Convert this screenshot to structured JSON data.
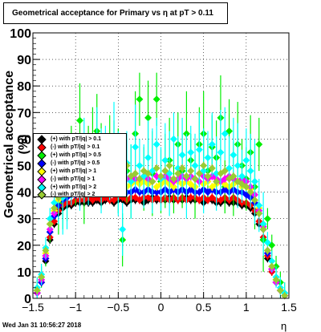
{
  "title": "Geometrical acceptance for Primary vs    η at pT > 0.11",
  "footer_timestamp": "Wed Jan 31 10:56:27 2018",
  "chart_data": {
    "type": "scatter",
    "title": "Geometrical acceptance for Primary vs    η at pT > 0.11",
    "xlabel": "η",
    "ylabel": "Geometrical acceptance (%)",
    "xlim": [
      -1.5,
      1.5
    ],
    "ylim": [
      0,
      100
    ],
    "x_ticks": [
      "−1.5",
      "−1",
      "−0.5",
      "0",
      "0.5",
      "1",
      "1.5"
    ],
    "y_ticks": [
      "0",
      "10",
      "20",
      "30",
      "40",
      "50",
      "60",
      "70",
      "80",
      "90",
      "100"
    ],
    "grid": true,
    "legend_position": "middle-left",
    "x": [
      -1.45,
      -1.4,
      -1.35,
      -1.3,
      -1.25,
      -1.2,
      -1.15,
      -1.1,
      -1.05,
      -1.0,
      -0.95,
      -0.9,
      -0.85,
      -0.8,
      -0.75,
      -0.7,
      -0.65,
      -0.6,
      -0.55,
      -0.5,
      -0.45,
      -0.4,
      -0.35,
      -0.3,
      -0.25,
      -0.2,
      -0.15,
      -0.1,
      -0.05,
      0.0,
      0.05,
      0.1,
      0.15,
      0.2,
      0.25,
      0.3,
      0.35,
      0.4,
      0.45,
      0.5,
      0.55,
      0.6,
      0.65,
      0.7,
      0.75,
      0.8,
      0.85,
      0.9,
      0.95,
      1.0,
      1.05,
      1.1,
      1.15,
      1.2,
      1.25,
      1.3,
      1.35,
      1.4,
      1.45
    ],
    "series": [
      {
        "name": "(+) with pT/|q| > 0.1",
        "color": "#000000",
        "values": [
          2,
          6,
          14,
          22,
          28,
          32,
          34,
          35,
          35,
          36,
          36,
          36,
          36,
          36,
          37,
          36,
          37,
          37,
          36,
          37,
          37,
          36,
          37,
          37,
          37,
          36,
          37,
          38,
          37,
          37,
          37,
          38,
          37,
          37,
          37,
          38,
          37,
          37,
          37,
          36,
          37,
          37,
          36,
          36,
          37,
          36,
          36,
          36,
          35,
          35,
          34,
          32,
          28,
          22,
          15,
          10,
          6,
          3,
          1
        ]
      },
      {
        "name": "(-) with pT/|q| > 0.1",
        "color": "#ff0000",
        "values": [
          2,
          6,
          15,
          23,
          29,
          33,
          35,
          36,
          36,
          37,
          37,
          37,
          38,
          37,
          38,
          37,
          38,
          37,
          37,
          38,
          38,
          37,
          38,
          38,
          37,
          38,
          38,
          37,
          38,
          37,
          38,
          37,
          38,
          37,
          38,
          37,
          38,
          38,
          37,
          38,
          37,
          38,
          37,
          37,
          38,
          37,
          38,
          37,
          36,
          36,
          35,
          33,
          29,
          23,
          16,
          10,
          6,
          3,
          1
        ]
      },
      {
        "name": "(+) with pT/|q| > 0.5",
        "color": "#00ee00",
        "values": [
          3,
          8,
          16,
          25,
          42,
          36,
          40,
          45,
          55,
          47,
          67,
          44,
          55,
          60,
          63,
          50,
          52,
          57,
          53,
          48,
          22,
          48,
          44,
          62,
          75,
          45,
          68,
          47,
          75,
          44,
          48,
          52,
          42,
          58,
          48,
          62,
          52,
          42,
          58,
          62,
          48,
          57,
          53,
          68,
          42,
          63,
          45,
          58,
          50,
          45,
          55,
          42,
          58,
          22,
          30,
          20,
          12,
          6,
          2
        ]
      },
      {
        "name": "(-) with pT/|q| > 0.5",
        "color": "#0000ff",
        "values": [
          2,
          6,
          15,
          25,
          31,
          35,
          37,
          38,
          39,
          39,
          40,
          40,
          41,
          40,
          40,
          41,
          40,
          40,
          41,
          40,
          41,
          40,
          40,
          41,
          40,
          40,
          41,
          40,
          40,
          40,
          41,
          40,
          41,
          40,
          41,
          40,
          41,
          40,
          40,
          41,
          40,
          41,
          40,
          40,
          41,
          40,
          41,
          40,
          40,
          39,
          38,
          36,
          32,
          26,
          17,
          11,
          6,
          3,
          1
        ]
      },
      {
        "name": "(+) with pT/|q| > 1",
        "color": "#ffff00",
        "values": [
          3,
          7,
          17,
          28,
          33,
          37,
          40,
          41,
          42,
          42,
          43,
          42,
          44,
          43,
          43,
          44,
          42,
          43,
          44,
          43,
          44,
          42,
          43,
          44,
          43,
          44,
          43,
          44,
          42,
          43,
          44,
          43,
          42,
          44,
          43,
          44,
          43,
          42,
          44,
          43,
          44,
          42,
          43,
          44,
          43,
          42,
          43,
          44,
          42,
          42,
          41,
          39,
          34,
          28,
          18,
          12,
          7,
          3,
          1
        ]
      },
      {
        "name": "(-) with pT/|q| > 1",
        "color": "#ff00ff",
        "values": [
          2,
          7,
          16,
          26,
          32,
          38,
          42,
          43,
          43,
          44,
          45,
          44,
          45,
          46,
          45,
          44,
          46,
          45,
          45,
          46,
          44,
          45,
          46,
          45,
          45,
          46,
          45,
          44,
          46,
          45,
          46,
          45,
          44,
          45,
          46,
          45,
          46,
          45,
          44,
          46,
          45,
          46,
          45,
          44,
          45,
          46,
          45,
          44,
          45,
          44,
          42,
          39,
          33,
          27,
          18,
          11,
          6,
          3,
          1
        ]
      },
      {
        "name": "(+) with pT/|q| > 2",
        "color": "#00ffff",
        "values": [
          4,
          9,
          19,
          30,
          36,
          40,
          38,
          42,
          45,
          50,
          47,
          52,
          45,
          50,
          58,
          48,
          55,
          49,
          60,
          47,
          26,
          51,
          44,
          57,
          50,
          46,
          53,
          48,
          58,
          45,
          52,
          47,
          60,
          49,
          54,
          46,
          55,
          50,
          56,
          48,
          53,
          58,
          47,
          55,
          62,
          49,
          54,
          50,
          46,
          52,
          48,
          44,
          35,
          28,
          21,
          14,
          8,
          4,
          2
        ]
      },
      {
        "name": "(-) with pT/|q| > 2",
        "color": "#99cc33",
        "values": [
          3,
          8,
          18,
          28,
          34,
          38,
          41,
          42,
          42,
          43,
          46,
          47,
          44,
          48,
          46,
          45,
          47,
          49,
          46,
          45,
          48,
          50,
          46,
          47,
          45,
          48,
          47,
          44,
          49,
          46,
          48,
          50,
          45,
          47,
          49,
          46,
          48,
          45,
          47,
          50,
          46,
          49,
          44,
          47,
          48,
          45,
          46,
          44,
          43,
          42,
          40,
          37,
          32,
          26,
          18,
          12,
          7,
          3,
          1
        ]
      }
    ]
  },
  "legend_labels": [
    "(+) with pT/|q| > 0.1",
    "(-) with pT/|q| > 0.1",
    "(+) with pT/|q| > 0.5",
    "(-) with pT/|q| > 0.5",
    "(+) with pT/|q| > 1",
    "(-) with pT/|q| > 1",
    "(+) with pT/|q| > 2",
    "(-) with pT/|q| > 2"
  ]
}
